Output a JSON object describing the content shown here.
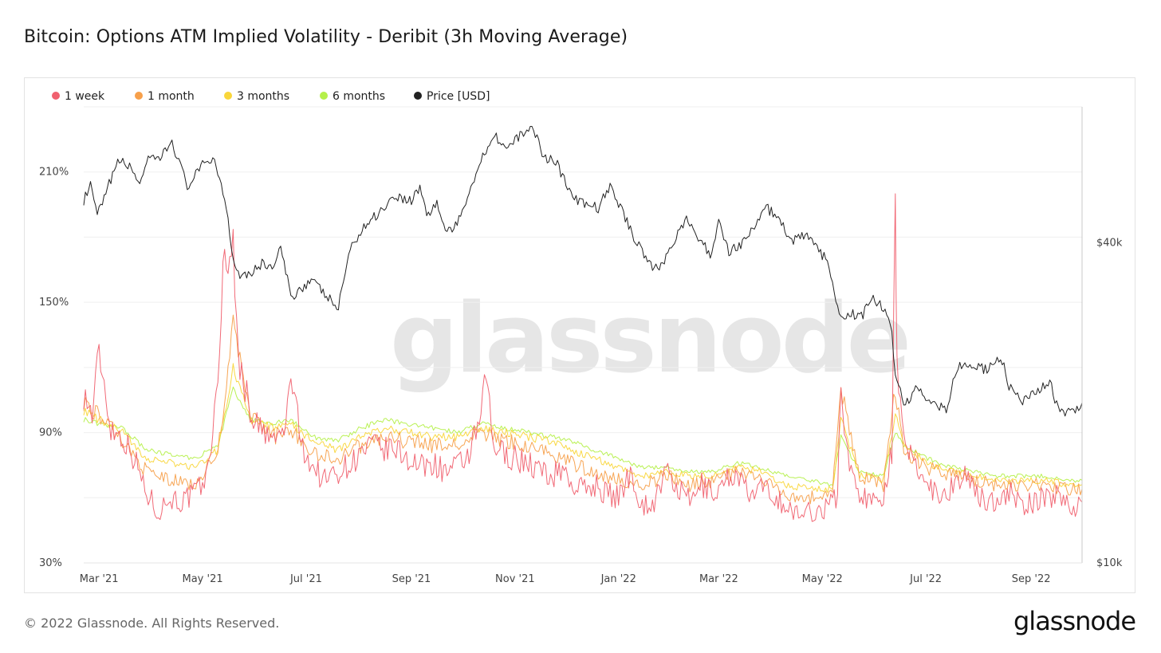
{
  "header": {
    "title": "Bitcoin: Options ATM Implied Volatility - Deribit (3h Moving Average)"
  },
  "footer": {
    "copyright": "© 2022 Glassnode. All Rights Reserved.",
    "logo": "glassnode"
  },
  "watermark": "glassnode",
  "chart_data": {
    "type": "line",
    "title": "Bitcoin: Options ATM Implied Volatility - Deribit (3h Moving Average)",
    "xlabel": "",
    "ylabel": "",
    "x_ticks": [
      "Mar '21",
      "May '21",
      "Jul '21",
      "Sep '21",
      "Nov '21",
      "Jan '22",
      "Mar '22",
      "May '22",
      "Jul '22",
      "Sep '22"
    ],
    "x_range": [
      "2021-02-20",
      "2022-10-01"
    ],
    "y_left": {
      "ticks": [
        "30%",
        "90%",
        "150%",
        "210%"
      ],
      "range": [
        30,
        240
      ]
    },
    "y_right": {
      "ticks": [
        "$10k",
        "$40k"
      ],
      "range": [
        10000,
        72000
      ],
      "scale": "log"
    },
    "grid": true,
    "legend_position": "top-left",
    "series": [
      {
        "name": "1 week",
        "axis": "left",
        "color": "#f0616f",
        "x": [
          "2021-02-20",
          "2021-02-25",
          "2021-03-01",
          "2021-03-08",
          "2021-03-15",
          "2021-03-22",
          "2021-03-29",
          "2021-04-05",
          "2021-04-12",
          "2021-04-19",
          "2021-04-26",
          "2021-05-03",
          "2021-05-10",
          "2021-05-13",
          "2021-05-19",
          "2021-05-22",
          "2021-05-29",
          "2021-06-05",
          "2021-06-12",
          "2021-06-19",
          "2021-06-22",
          "2021-06-28",
          "2021-07-05",
          "2021-07-12",
          "2021-07-19",
          "2021-07-26",
          "2021-08-02",
          "2021-08-09",
          "2021-08-16",
          "2021-08-23",
          "2021-08-30",
          "2021-09-07",
          "2021-09-14",
          "2021-09-21",
          "2021-09-28",
          "2021-10-05",
          "2021-10-12",
          "2021-10-15",
          "2021-10-19",
          "2021-10-26",
          "2021-11-02",
          "2021-11-09",
          "2021-11-16",
          "2021-11-23",
          "2021-11-30",
          "2021-12-04",
          "2021-12-11",
          "2021-12-18",
          "2021-12-25",
          "2022-01-01",
          "2022-01-08",
          "2022-01-15",
          "2022-01-22",
          "2022-01-29",
          "2022-02-05",
          "2022-02-12",
          "2022-02-19",
          "2022-02-26",
          "2022-03-05",
          "2022-03-12",
          "2022-03-19",
          "2022-03-26",
          "2022-04-02",
          "2022-04-09",
          "2022-04-16",
          "2022-04-23",
          "2022-04-30",
          "2022-05-07",
          "2022-05-10",
          "2022-05-12",
          "2022-05-16",
          "2022-05-23",
          "2022-05-30",
          "2022-06-06",
          "2022-06-11",
          "2022-06-13",
          "2022-06-14",
          "2022-06-18",
          "2022-06-25",
          "2022-07-02",
          "2022-07-09",
          "2022-07-16",
          "2022-07-23",
          "2022-07-30",
          "2022-08-06",
          "2022-08-13",
          "2022-08-20",
          "2022-08-27",
          "2022-09-03",
          "2022-09-10",
          "2022-09-17",
          "2022-09-24",
          "2022-10-01"
        ],
        "y": [
          108,
          98,
          128,
          92,
          88,
          78,
          62,
          54,
          60,
          58,
          62,
          68,
          110,
          168,
          175,
          125,
          100,
          90,
          86,
          92,
          118,
          85,
          74,
          68,
          72,
          75,
          80,
          84,
          82,
          82,
          78,
          74,
          76,
          72,
          74,
          80,
          96,
          118,
          84,
          80,
          78,
          76,
          72,
          70,
          74,
          66,
          64,
          66,
          62,
          60,
          72,
          56,
          58,
          72,
          64,
          58,
          66,
          62,
          68,
          72,
          60,
          64,
          62,
          56,
          52,
          54,
          54,
          58,
          62,
          112,
          78,
          62,
          58,
          62,
          82,
          202,
          118,
          84,
          76,
          66,
          62,
          64,
          72,
          62,
          58,
          60,
          62,
          56,
          58,
          60,
          62,
          56,
          58
        ]
      },
      {
        "name": "1 month",
        "axis": "left",
        "color": "#f7a04b",
        "x": [
          "2021-02-20",
          "2021-03-01",
          "2021-03-15",
          "2021-03-29",
          "2021-04-12",
          "2021-04-26",
          "2021-05-10",
          "2021-05-19",
          "2021-05-29",
          "2021-06-12",
          "2021-06-22",
          "2021-07-05",
          "2021-07-19",
          "2021-08-02",
          "2021-08-16",
          "2021-08-30",
          "2021-09-14",
          "2021-09-28",
          "2021-10-12",
          "2021-10-26",
          "2021-11-09",
          "2021-11-23",
          "2021-12-04",
          "2021-12-18",
          "2022-01-01",
          "2022-01-15",
          "2022-01-29",
          "2022-02-12",
          "2022-02-26",
          "2022-03-12",
          "2022-03-26",
          "2022-04-09",
          "2022-04-23",
          "2022-05-07",
          "2022-05-12",
          "2022-05-23",
          "2022-06-06",
          "2022-06-13",
          "2022-06-18",
          "2022-07-02",
          "2022-07-16",
          "2022-07-30",
          "2022-08-13",
          "2022-08-27",
          "2022-09-10",
          "2022-09-24",
          "2022-10-01"
        ],
        "y": [
          104,
          98,
          86,
          72,
          68,
          66,
          80,
          140,
          98,
          88,
          92,
          80,
          78,
          84,
          88,
          86,
          84,
          84,
          90,
          86,
          84,
          80,
          76,
          72,
          68,
          66,
          70,
          66,
          68,
          72,
          68,
          62,
          60,
          62,
          110,
          70,
          66,
          110,
          82,
          74,
          70,
          68,
          66,
          66,
          66,
          64,
          64
        ]
      },
      {
        "name": "3 months",
        "axis": "left",
        "color": "#f9d63a",
        "x": [
          "2021-02-20",
          "2021-03-01",
          "2021-03-15",
          "2021-03-29",
          "2021-04-12",
          "2021-04-26",
          "2021-05-10",
          "2021-05-19",
          "2021-05-29",
          "2021-06-12",
          "2021-06-22",
          "2021-07-05",
          "2021-07-19",
          "2021-08-02",
          "2021-08-16",
          "2021-08-30",
          "2021-09-14",
          "2021-09-28",
          "2021-10-12",
          "2021-10-26",
          "2021-11-09",
          "2021-11-23",
          "2021-12-04",
          "2021-12-18",
          "2022-01-01",
          "2022-01-15",
          "2022-01-29",
          "2022-02-12",
          "2022-02-26",
          "2022-03-12",
          "2022-03-26",
          "2022-04-09",
          "2022-04-23",
          "2022-05-07",
          "2022-05-12",
          "2022-05-23",
          "2022-06-06",
          "2022-06-13",
          "2022-06-18",
          "2022-07-02",
          "2022-07-16",
          "2022-07-30",
          "2022-08-13",
          "2022-08-27",
          "2022-09-10",
          "2022-09-24",
          "2022-10-01"
        ],
        "y": [
          100,
          96,
          90,
          78,
          76,
          74,
          82,
          120,
          96,
          92,
          94,
          86,
          82,
          88,
          92,
          90,
          88,
          88,
          92,
          90,
          88,
          86,
          82,
          78,
          74,
          70,
          72,
          70,
          70,
          74,
          72,
          66,
          64,
          64,
          96,
          70,
          68,
          98,
          84,
          76,
          72,
          70,
          68,
          68,
          68,
          66,
          66
        ]
      },
      {
        "name": "6 months",
        "axis": "left",
        "color": "#b5f04a",
        "x": [
          "2021-02-20",
          "2021-03-01",
          "2021-03-15",
          "2021-03-29",
          "2021-04-12",
          "2021-04-26",
          "2021-05-10",
          "2021-05-19",
          "2021-05-29",
          "2021-06-12",
          "2021-06-22",
          "2021-07-05",
          "2021-07-19",
          "2021-08-02",
          "2021-08-16",
          "2021-08-30",
          "2021-09-14",
          "2021-09-28",
          "2021-10-12",
          "2021-10-26",
          "2021-11-09",
          "2021-11-23",
          "2021-12-04",
          "2021-12-18",
          "2022-01-01",
          "2022-01-15",
          "2022-01-29",
          "2022-02-12",
          "2022-02-26",
          "2022-03-12",
          "2022-03-26",
          "2022-04-09",
          "2022-04-23",
          "2022-05-07",
          "2022-05-12",
          "2022-05-23",
          "2022-06-06",
          "2022-06-13",
          "2022-06-18",
          "2022-07-02",
          "2022-07-16",
          "2022-07-30",
          "2022-08-13",
          "2022-08-27",
          "2022-09-10",
          "2022-09-24",
          "2022-10-01"
        ],
        "y": [
          96,
          94,
          92,
          82,
          80,
          78,
          84,
          110,
          96,
          94,
          96,
          88,
          86,
          92,
          96,
          94,
          92,
          90,
          94,
          92,
          90,
          88,
          86,
          82,
          78,
          74,
          74,
          72,
          72,
          76,
          74,
          70,
          68,
          66,
          88,
          72,
          70,
          90,
          84,
          78,
          74,
          72,
          70,
          70,
          70,
          68,
          68
        ]
      },
      {
        "name": "Price [USD]",
        "axis": "right",
        "color": "#222222",
        "x": [
          "2021-02-20",
          "2021-02-24",
          "2021-02-28",
          "2021-03-05",
          "2021-03-09",
          "2021-03-13",
          "2021-03-18",
          "2021-03-25",
          "2021-03-30",
          "2021-04-06",
          "2021-04-13",
          "2021-04-16",
          "2021-04-22",
          "2021-04-26",
          "2021-05-03",
          "2021-05-08",
          "2021-05-12",
          "2021-05-15",
          "2021-05-19",
          "2021-05-23",
          "2021-05-29",
          "2021-06-05",
          "2021-06-12",
          "2021-06-16",
          "2021-06-22",
          "2021-06-26",
          "2021-07-04",
          "2021-07-12",
          "2021-07-20",
          "2021-07-26",
          "2021-07-31",
          "2021-08-06",
          "2021-08-14",
          "2021-08-22",
          "2021-09-01",
          "2021-09-06",
          "2021-09-10",
          "2021-09-16",
          "2021-09-21",
          "2021-09-28",
          "2021-10-04",
          "2021-10-11",
          "2021-10-16",
          "2021-10-20",
          "2021-10-27",
          "2021-11-01",
          "2021-11-09",
          "2021-11-13",
          "2021-11-18",
          "2021-11-25",
          "2021-12-04",
          "2021-12-10",
          "2021-12-20",
          "2021-12-27",
          "2022-01-03",
          "2022-01-10",
          "2022-01-22",
          "2022-01-27",
          "2022-02-07",
          "2022-02-10",
          "2022-02-14",
          "2022-02-24",
          "2022-03-01",
          "2022-03-07",
          "2022-03-15",
          "2022-03-23",
          "2022-03-28",
          "2022-04-06",
          "2022-04-13",
          "2022-04-20",
          "2022-04-28",
          "2022-05-05",
          "2022-05-09",
          "2022-05-12",
          "2022-05-16",
          "2022-05-24",
          "2022-05-31",
          "2022-06-06",
          "2022-06-10",
          "2022-06-13",
          "2022-06-18",
          "2022-06-26",
          "2022-07-04",
          "2022-07-13",
          "2022-07-20",
          "2022-07-30",
          "2022-08-06",
          "2022-08-14",
          "2022-08-19",
          "2022-08-27",
          "2022-09-05",
          "2022-09-12",
          "2022-09-15",
          "2022-09-20",
          "2022-09-27",
          "2022-10-01"
        ],
        "y": [
          48000,
          51000,
          45000,
          49000,
          54000,
          57000,
          56000,
          52000,
          57000,
          57500,
          62000,
          58000,
          51000,
          53000,
          57000,
          57500,
          51000,
          47000,
          37000,
          35000,
          35000,
          36500,
          36000,
          39000,
          31500,
          32500,
          34000,
          32000,
          30000,
          38000,
          41000,
          43500,
          46000,
          49000,
          48000,
          51000,
          45000,
          47500,
          42000,
          43000,
          49000,
          56000,
          61000,
          64000,
          60000,
          62000,
          66000,
          64000,
          58000,
          57000,
          49000,
          47500,
          46500,
          51000,
          46000,
          41000,
          35500,
          36500,
          43000,
          44000,
          42000,
          38000,
          43500,
          38500,
          40000,
          43000,
          47000,
          44000,
          40000,
          41500,
          39000,
          36500,
          30500,
          28500,
          29500,
          29000,
          31500,
          30000,
          28500,
          23000,
          19500,
          21500,
          20000,
          19500,
          23500,
          23500,
          23000,
          24500,
          21500,
          20000,
          21000,
          22000,
          20000,
          19000,
          19500,
          20000
        ]
      }
    ]
  }
}
